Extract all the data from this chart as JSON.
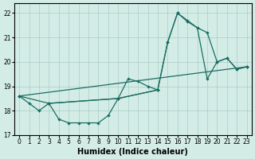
{
  "xlabel": "Humidex (Indice chaleur)",
  "background_color": "#d4ece6",
  "grid_color": "#aaccc6",
  "line_color": "#1a6e62",
  "xlim": [
    -0.5,
    23.5
  ],
  "ylim": [
    17,
    22.4
  ],
  "yticks": [
    17,
    18,
    19,
    20,
    21,
    22
  ],
  "xticks": [
    0,
    1,
    2,
    3,
    4,
    5,
    6,
    7,
    8,
    9,
    10,
    11,
    12,
    13,
    14,
    15,
    16,
    17,
    18,
    19,
    20,
    21,
    22,
    23
  ],
  "line1_x": [
    0,
    1,
    2,
    3,
    10,
    14,
    15,
    16,
    17,
    18,
    19,
    20,
    21,
    22,
    23
  ],
  "line1_y": [
    18.6,
    18.3,
    18.0,
    18.3,
    18.5,
    18.85,
    20.8,
    22.0,
    21.7,
    21.4,
    19.3,
    20.0,
    20.15,
    19.7,
    19.8
  ],
  "line2_x": [
    0,
    3,
    10,
    14,
    15,
    16,
    17,
    18,
    19,
    20,
    21,
    22,
    23
  ],
  "line2_y": [
    18.6,
    18.3,
    18.5,
    18.85,
    20.8,
    22.0,
    21.65,
    21.4,
    21.2,
    20.0,
    20.15,
    19.7,
    19.8
  ],
  "line3_x": [
    0,
    23
  ],
  "line3_y": [
    18.6,
    19.8
  ],
  "line4_x": [
    3,
    4,
    5,
    6,
    7,
    8,
    9,
    10,
    11,
    12,
    13,
    14
  ],
  "line4_y": [
    18.3,
    17.65,
    17.5,
    17.5,
    17.5,
    17.5,
    17.8,
    18.5,
    19.3,
    19.2,
    19.0,
    18.85
  ]
}
